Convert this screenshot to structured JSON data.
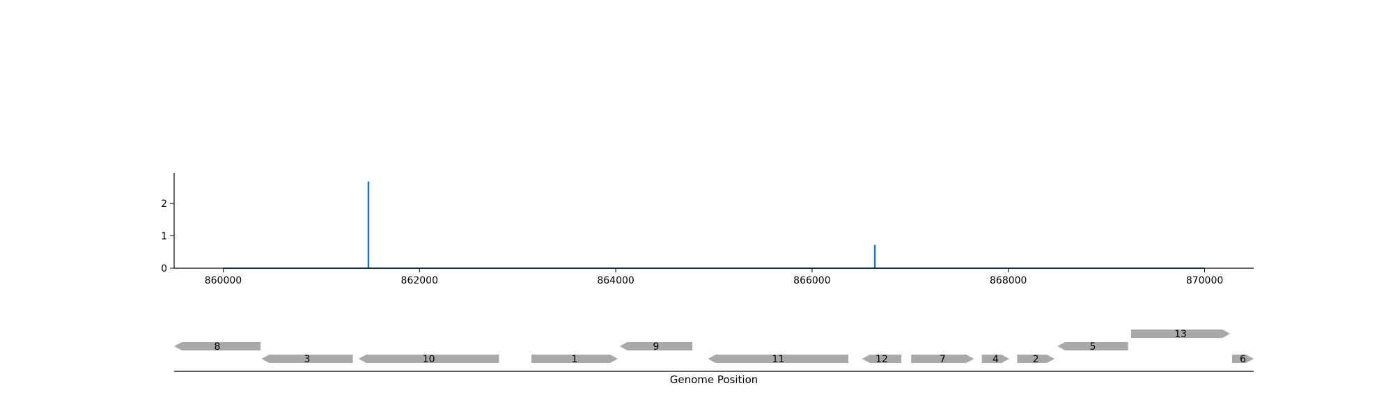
{
  "chart_data": [
    {
      "type": "line",
      "title": "",
      "xlabel": "",
      "ylabel": "",
      "xlim": [
        859500,
        870500
      ],
      "ylim": [
        0,
        2.95
      ],
      "xticks": [
        860000,
        862000,
        864000,
        866000,
        868000,
        870000
      ],
      "yticks": [
        0,
        1,
        2
      ],
      "grid": false,
      "series": [
        {
          "color": "#1f77b4",
          "x_range": [
            860000,
            870000
          ],
          "baseline": 0,
          "spikes": [
            {
              "x": 861480,
              "y": 2.68
            },
            {
              "x": 866640,
              "y": 0.72
            }
          ]
        }
      ]
    },
    {
      "type": "gene-track",
      "xlabel": "Genome Position",
      "xlim": [
        859500,
        870500
      ],
      "feature_color": "#a9a9a9",
      "features": [
        {
          "label": "8",
          "start": 859500,
          "end": 860380,
          "strand": "-",
          "row": 1
        },
        {
          "label": "3",
          "start": 860390,
          "end": 861320,
          "strand": "-",
          "row": 0
        },
        {
          "label": "10",
          "start": 861380,
          "end": 862810,
          "strand": "-",
          "row": 0
        },
        {
          "label": "1",
          "start": 863140,
          "end": 864020,
          "strand": "+",
          "row": 0
        },
        {
          "label": "9",
          "start": 864040,
          "end": 864780,
          "strand": "-",
          "row": 1
        },
        {
          "label": "11",
          "start": 864940,
          "end": 866370,
          "strand": "-",
          "row": 0
        },
        {
          "label": "12",
          "start": 866510,
          "end": 866910,
          "strand": "-",
          "row": 0
        },
        {
          "label": "7",
          "start": 867010,
          "end": 867650,
          "strand": "+",
          "row": 0
        },
        {
          "label": "4",
          "start": 867730,
          "end": 868010,
          "strand": "+",
          "row": 0
        },
        {
          "label": "2",
          "start": 868090,
          "end": 868470,
          "strand": "+",
          "row": 0
        },
        {
          "label": "5",
          "start": 868500,
          "end": 869220,
          "strand": "-",
          "row": 1
        },
        {
          "label": "13",
          "start": 869250,
          "end": 870260,
          "strand": "+",
          "row": 2
        },
        {
          "label": "6",
          "start": 870280,
          "end": 870500,
          "strand": "+",
          "row": 0
        }
      ]
    }
  ]
}
